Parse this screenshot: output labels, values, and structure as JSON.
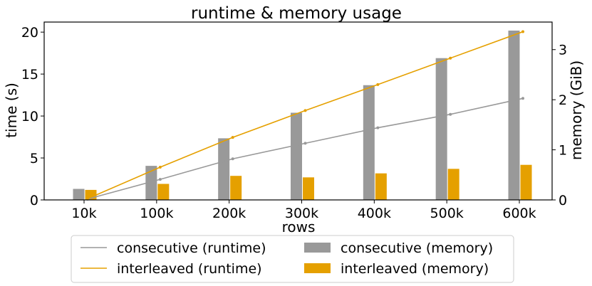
{
  "chart_data": {
    "type": "bar",
    "title": "runtime & memory usage",
    "xlabel": "rows",
    "ylabel": "time (s)",
    "ylabel_right": "memory (GiB)",
    "categories": [
      "10k",
      "100k",
      "200k",
      "300k",
      "400k",
      "500k",
      "600k"
    ],
    "ylim": [
      0,
      21.2
    ],
    "y_ticks": [
      0,
      5,
      10,
      15,
      20
    ],
    "ylim_right": [
      0,
      3.55
    ],
    "y_ticks_right": [
      0,
      1,
      2,
      3
    ],
    "grid": false,
    "legend_position": "bottom",
    "colors": {
      "consecutive": "#999999",
      "interleaved": "#E5A000"
    },
    "series": [
      {
        "name": "consecutive (runtime)",
        "kind": "line",
        "axis": "left",
        "color": "#999999",
        "values": [
          0.1,
          2.45,
          4.9,
          6.75,
          8.6,
          10.2,
          12.1
        ]
      },
      {
        "name": "interleaved (runtime)",
        "kind": "line",
        "axis": "left",
        "color": "#E5A000",
        "values": [
          0.15,
          3.9,
          7.45,
          10.65,
          13.75,
          16.9,
          20.05
        ]
      },
      {
        "name": "consecutive (memory)",
        "kind": "bar",
        "axis": "right",
        "color": "#999999",
        "values": [
          0.22,
          0.68,
          1.23,
          1.74,
          2.29,
          2.83,
          3.38
        ]
      },
      {
        "name": "interleaved (memory)",
        "kind": "bar",
        "axis": "right",
        "color": "#E5A000",
        "values": [
          0.2,
          0.32,
          0.48,
          0.45,
          0.53,
          0.62,
          0.7
        ]
      }
    ]
  }
}
